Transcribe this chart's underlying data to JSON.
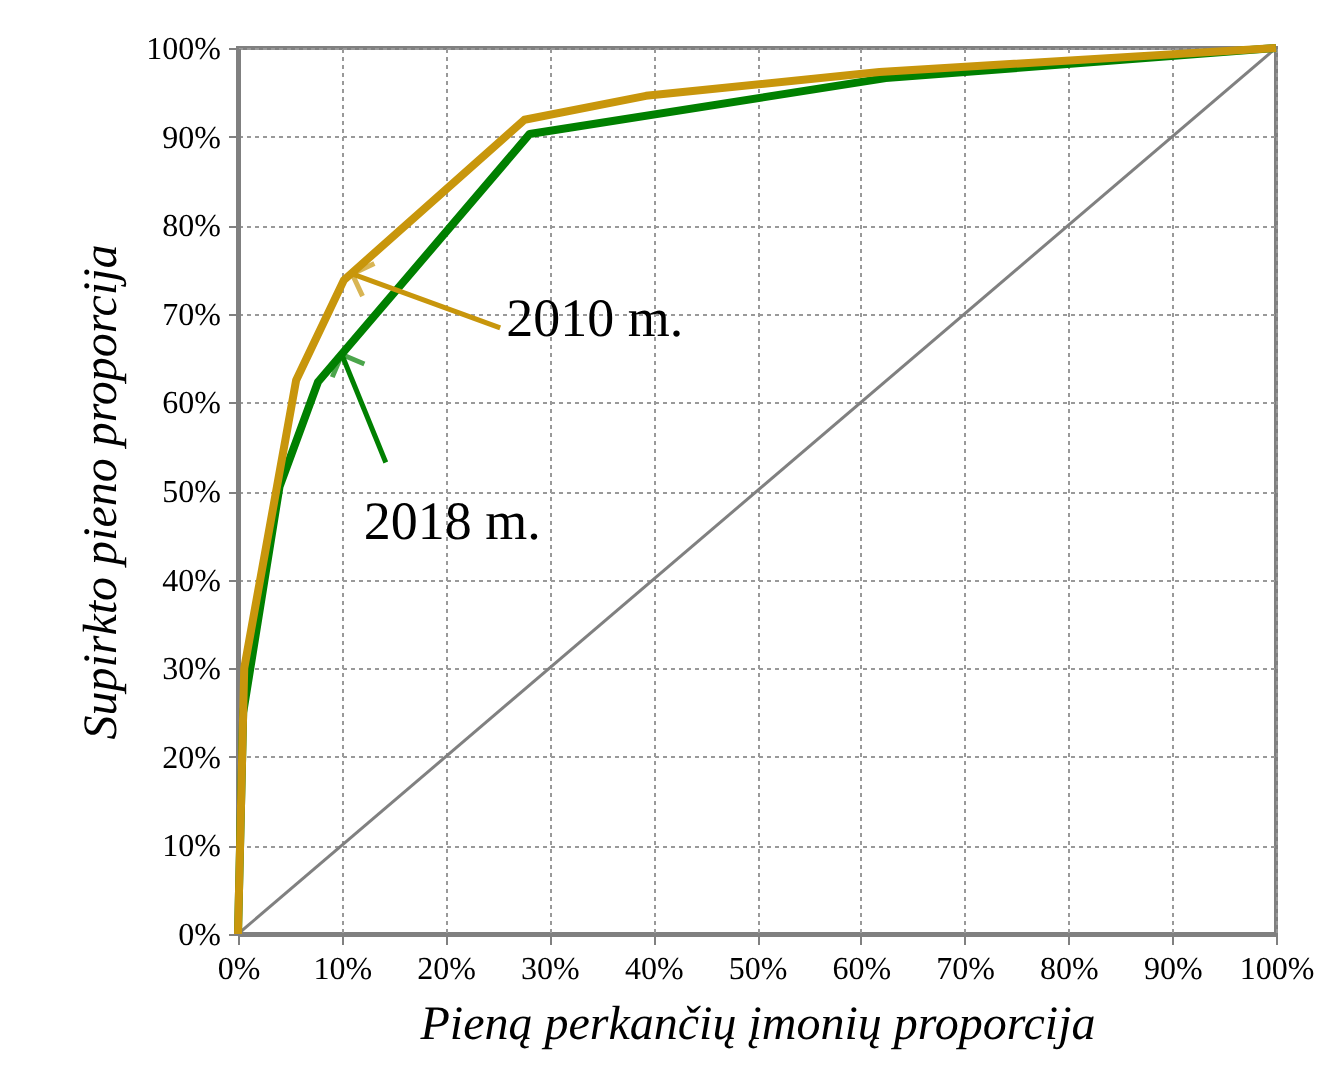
{
  "chart_data": {
    "type": "line",
    "xlabel": "Pieną perkančių įmonių proporcija",
    "ylabel": "Supirkto pieno proporcija",
    "series": [
      {
        "color": "#808080",
        "x": [
          0,
          100
        ],
        "values": [
          0,
          100
        ]
      },
      {
        "color": "#008000",
        "x": [
          0,
          0.5,
          4,
          7.7,
          28.1,
          62.4,
          100
        ],
        "values": [
          0,
          25,
          50.5,
          62.3,
          90.3,
          96.6,
          100
        ]
      },
      {
        "color": "#c8960c",
        "x": [
          0,
          0.6,
          5.6,
          10.2,
          27.6,
          39.3,
          61.8,
          100
        ],
        "values": [
          0,
          30,
          62.5,
          73.8,
          91.9,
          94.6,
          97.3,
          100
        ]
      }
    ],
    "annotations": [
      {
        "text": "2010 m.",
        "x": 11,
        "y": 74.5
      },
      {
        "text": "2018 m.",
        "x": 10,
        "y": 65.4
      }
    ],
    "xlim": [
      0,
      100
    ],
    "ylim": [
      0,
      100
    ],
    "xticks": [
      {
        "value": 0,
        "label": "0%"
      },
      {
        "value": 10,
        "label": "10%"
      },
      {
        "value": 20,
        "label": "20%"
      },
      {
        "value": 30,
        "label": "30%"
      },
      {
        "value": 40,
        "label": "40%"
      },
      {
        "value": 50,
        "label": "50%"
      },
      {
        "value": 60,
        "label": "60%"
      },
      {
        "value": 70,
        "label": "70%"
      },
      {
        "value": 80,
        "label": "80%"
      },
      {
        "value": 90,
        "label": "90%"
      },
      {
        "value": 100,
        "label": "100%"
      }
    ],
    "yticks": [
      {
        "value": 0,
        "label": "0%"
      },
      {
        "value": 10,
        "label": "10%"
      },
      {
        "value": 20,
        "label": "20%"
      },
      {
        "value": 30,
        "label": "30%"
      },
      {
        "value": 40,
        "label": "40%"
      },
      {
        "value": 50,
        "label": "50%"
      },
      {
        "value": 60,
        "label": "60%"
      },
      {
        "value": 70,
        "label": "70%"
      },
      {
        "value": 80,
        "label": "80%"
      },
      {
        "value": 90,
        "label": "90%"
      },
      {
        "value": 100,
        "label": "100%"
      }
    ],
    "grid": true,
    "line_style": "solid",
    "marker": "none"
  }
}
